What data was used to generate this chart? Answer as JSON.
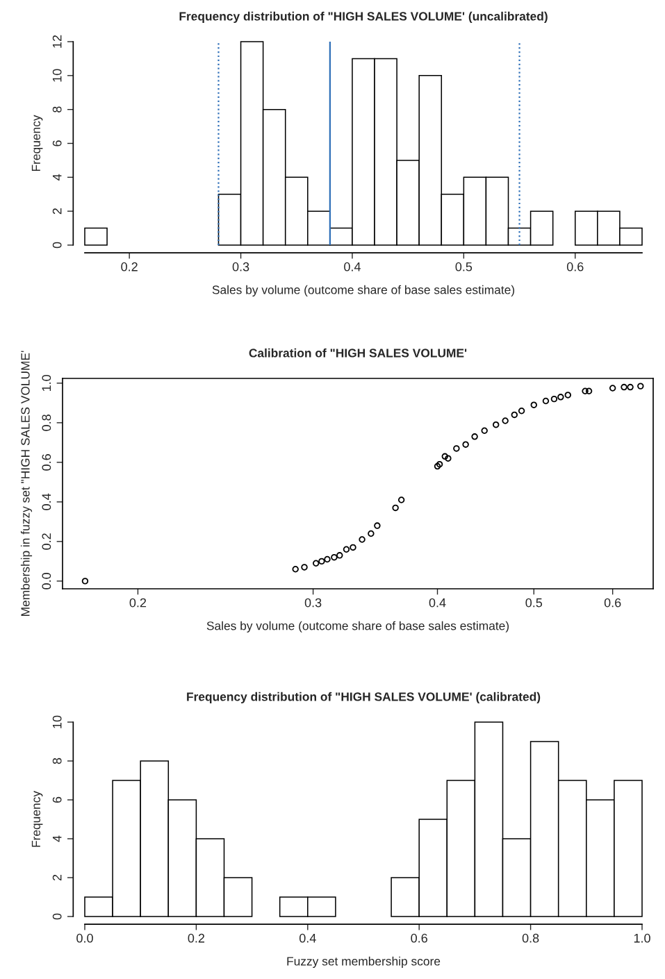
{
  "chart_data": [
    {
      "type": "histogram",
      "title": "Frequency distribution of \"HIGH SALES VOLUME' (uncalibrated)",
      "xlabel": "Sales by volume (outcome share of base sales estimate)",
      "ylabel": "Frequency",
      "bins": [
        0.16,
        0.18,
        0.2,
        0.22,
        0.24,
        0.26,
        0.28,
        0.3,
        0.32,
        0.34,
        0.36,
        0.38,
        0.4,
        0.42,
        0.44,
        0.46,
        0.48,
        0.5,
        0.52,
        0.54,
        0.56,
        0.58,
        0.6,
        0.62,
        0.64,
        0.66
      ],
      "values": [
        1,
        0,
        0,
        0,
        0,
        0,
        3,
        12,
        8,
        4,
        2,
        1,
        11,
        11,
        5,
        10,
        3,
        4,
        4,
        1,
        2,
        0,
        2,
        2,
        1
      ],
      "color": "#ffffff",
      "xlim": [
        0.16,
        0.66
      ],
      "xticks": [
        0.2,
        0.3,
        0.4,
        0.5,
        0.6
      ],
      "ylim": [
        0,
        12
      ],
      "yticks": [
        0,
        2,
        4,
        6,
        8,
        10,
        12
      ],
      "grid": false,
      "ref_lines": [
        {
          "axis": "x",
          "value": 0.28,
          "color": "#2e6fb8",
          "line_style": "dotted"
        },
        {
          "axis": "x",
          "value": 0.38,
          "color": "#2e6fb8",
          "line_style": "solid"
        },
        {
          "axis": "x",
          "value": 0.55,
          "color": "#2e6fb8",
          "line_style": "dotted"
        }
      ]
    },
    {
      "type": "scatter",
      "title": "Calibration of \"HIGH SALES VOLUME'",
      "xlabel": "Sales by volume (outcome share of base sales estimate)",
      "ylabel": "Membership in fuzzy set \"HIGH SALES VOLUME'",
      "log": "x",
      "marker": "circle",
      "color": "#000000",
      "grid": false,
      "x": [
        0.177,
        0.288,
        0.294,
        0.302,
        0.306,
        0.31,
        0.315,
        0.319,
        0.324,
        0.329,
        0.336,
        0.343,
        0.348,
        0.363,
        0.368,
        0.4,
        0.402,
        0.407,
        0.41,
        0.418,
        0.427,
        0.436,
        0.446,
        0.458,
        0.468,
        0.478,
        0.486,
        0.5,
        0.514,
        0.524,
        0.532,
        0.541,
        0.563,
        0.568,
        0.6,
        0.616,
        0.625,
        0.64
      ],
      "values": [
        0.0,
        0.06,
        0.07,
        0.09,
        0.1,
        0.11,
        0.12,
        0.13,
        0.16,
        0.17,
        0.21,
        0.24,
        0.28,
        0.37,
        0.41,
        0.58,
        0.59,
        0.63,
        0.62,
        0.67,
        0.69,
        0.73,
        0.76,
        0.79,
        0.81,
        0.84,
        0.86,
        0.89,
        0.91,
        0.92,
        0.93,
        0.94,
        0.96,
        0.96,
        0.975,
        0.98,
        0.98,
        0.985
      ],
      "xlim": [
        0.168,
        0.659
      ],
      "xticks": [
        0.2,
        0.3,
        0.4,
        0.5,
        0.6
      ],
      "ylim": [
        -0.039,
        1.024
      ],
      "yticks": [
        {
          "value": 0,
          "label": "0.0"
        },
        0.2,
        0.4,
        0.6,
        0.8,
        {
          "value": 1,
          "label": "1.0"
        }
      ]
    },
    {
      "type": "histogram",
      "title": "Frequency distribution of \"HIGH SALES VOLUME' (calibrated)",
      "xlabel": "Fuzzy set membership score",
      "ylabel": "Frequency",
      "bins": [
        0.0,
        0.05,
        0.1,
        0.15,
        0.2,
        0.25,
        0.3,
        0.35,
        0.4,
        0.45,
        0.5,
        0.55,
        0.6,
        0.65,
        0.7,
        0.75,
        0.8,
        0.85,
        0.9,
        0.95,
        1.0
      ],
      "values": [
        1,
        7,
        8,
        6,
        4,
        2,
        0,
        1,
        1,
        0,
        0,
        2,
        5,
        7,
        10,
        4,
        9,
        7,
        6,
        7
      ],
      "color": "#ffffff",
      "xlim": [
        0.0,
        1.0
      ],
      "xticks": [
        {
          "value": 0,
          "label": "0.0"
        },
        0.2,
        0.4,
        0.6,
        0.8,
        {
          "value": 1,
          "label": "1.0"
        }
      ],
      "ylim": [
        0,
        10
      ],
      "yticks": [
        0,
        2,
        4,
        6,
        8,
        10
      ],
      "grid": false
    }
  ]
}
